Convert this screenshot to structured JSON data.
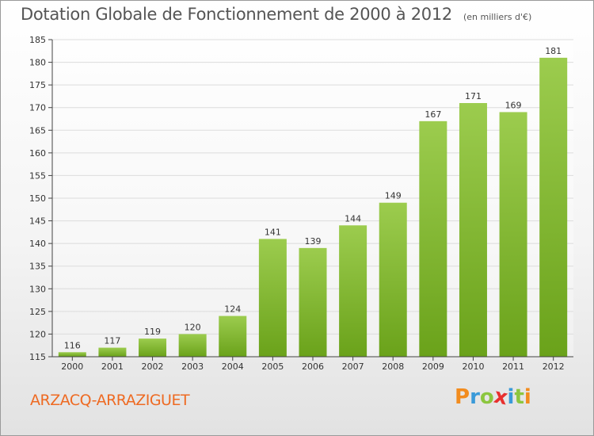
{
  "title": "Dotation Globale de Fonctionnement de 2000 à 2012",
  "subtitle": "(en milliers d'€)",
  "commune": "ARZACQ-ARRAZIGUET",
  "logo": {
    "text": "Proxiti",
    "letters": [
      {
        "ch": "P",
        "color": "#f28c1e"
      },
      {
        "ch": "r",
        "color": "#3a9ad9"
      },
      {
        "ch": "o",
        "color": "#8cc63f"
      },
      {
        "ch": "x",
        "color": "#e8302e"
      },
      {
        "ch": "i",
        "color": "#3a9ad9"
      },
      {
        "ch": "t",
        "color": "#8cc63f"
      },
      {
        "ch": "i",
        "color": "#f28c1e"
      }
    ]
  },
  "colors": {
    "bar_light": "#9ccc4e",
    "bar_dark": "#6aa21a",
    "grid": "#dcdcdc",
    "axis": "#444444"
  },
  "chart_data": {
    "type": "bar",
    "title": "Dotation Globale de Fonctionnement de 2000 à 2012",
    "xlabel": "",
    "ylabel": "(en milliers d'€)",
    "categories": [
      "2000",
      "2001",
      "2002",
      "2003",
      "2004",
      "2005",
      "2006",
      "2007",
      "2008",
      "2009",
      "2010",
      "2011",
      "2012"
    ],
    "values": [
      116,
      117,
      119,
      120,
      124,
      141,
      139,
      144,
      149,
      167,
      171,
      169,
      181
    ],
    "ylim": [
      115,
      185
    ],
    "yticks": [
      115,
      120,
      125,
      130,
      135,
      140,
      145,
      150,
      155,
      160,
      165,
      170,
      175,
      180,
      185
    ],
    "grid": true
  }
}
